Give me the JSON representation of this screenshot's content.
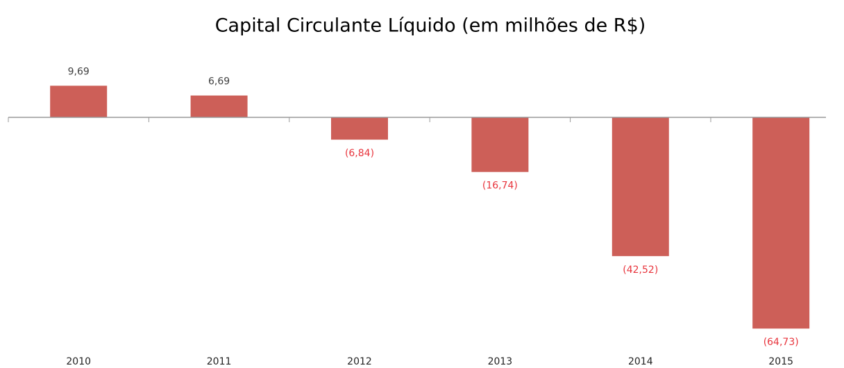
{
  "chart_data": {
    "type": "bar",
    "title": "Capital Circulante Líquido (em milhões de R$)",
    "categories": [
      "2010",
      "2011",
      "2012",
      "2013",
      "2014",
      "2015"
    ],
    "values": [
      9.69,
      6.69,
      -6.84,
      -16.74,
      -42.52,
      -64.73
    ],
    "value_labels": [
      "9,69",
      "6,69",
      "(6,84)",
      "(16,74)",
      "(42,52)",
      "(64,73)"
    ],
    "color": "#cd5f58",
    "label_color": "#404040",
    "negative_label_color": "#e8343c",
    "ylim": [
      -70,
      12
    ]
  }
}
